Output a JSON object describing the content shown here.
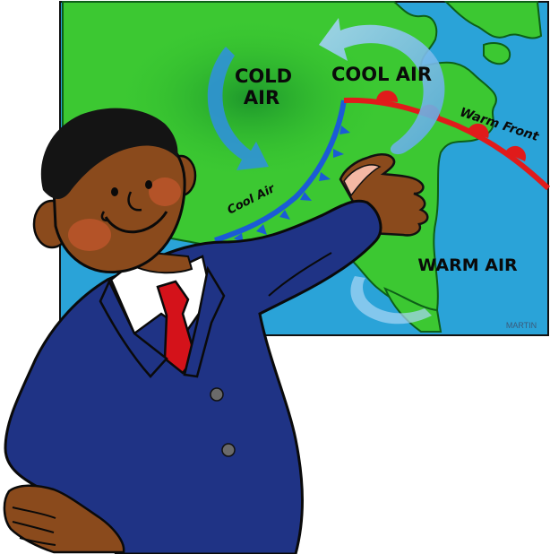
{
  "map": {
    "labels": {
      "cold_air_line1": "COLD",
      "cold_air_line2": "AIR",
      "cool_air_big": "COOL AIR",
      "warm_front": "Warm Front",
      "cool_air_small": "Cool Air",
      "warm_air": "WARM AIR"
    },
    "signature": "MARTIN"
  },
  "colors": {
    "water": "#2aa3d8",
    "land": "#3cc832",
    "land_dark": "#1f9a2a",
    "cold_front": "#1b5bd6",
    "warm_front": "#e01b1b",
    "arrow_blue": "#8cc6ee",
    "suit": "#1f3385",
    "skin": "#8a4a1c",
    "tie": "#d4121a"
  }
}
